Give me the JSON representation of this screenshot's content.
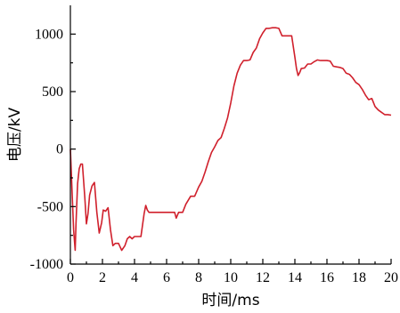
{
  "chart_data": {
    "type": "line",
    "title": "",
    "xlabel": "时间/ms",
    "ylabel": "电压/kV",
    "xlim": [
      0,
      20
    ],
    "ylim": [
      -1000,
      1250
    ],
    "xticks": [
      0,
      2,
      4,
      6,
      8,
      10,
      12,
      14,
      16,
      18,
      20
    ],
    "yticks": [
      -1000,
      -500,
      0,
      500,
      1000
    ],
    "grid": false,
    "legend": "none",
    "series": [
      {
        "color": "#d0202c",
        "x": [
          0,
          0.1,
          0.2,
          0.3,
          0.35,
          0.45,
          0.55,
          0.65,
          0.75,
          0.9,
          1.0,
          1.1,
          1.2,
          1.35,
          1.5,
          1.65,
          1.8,
          1.95,
          2.05,
          2.2,
          2.35,
          2.5,
          2.65,
          2.8,
          3.0,
          3.2,
          3.4,
          3.55,
          3.7,
          3.85,
          4.0,
          4.2,
          4.4,
          4.6,
          4.7,
          4.8,
          4.9,
          5.0,
          5.1,
          5.3,
          5.6,
          6.0,
          6.3,
          6.5,
          6.6,
          6.75,
          7.0,
          7.2,
          7.5,
          7.75,
          8.0,
          8.2,
          8.4,
          8.6,
          8.8,
          9.0,
          9.2,
          9.4,
          9.6,
          9.8,
          10.0,
          10.2,
          10.4,
          10.6,
          10.8,
          11.0,
          11.2,
          11.4,
          11.6,
          11.8,
          12.0,
          12.2,
          12.4,
          12.6,
          12.8,
          13.0,
          13.2,
          13.4,
          13.6,
          13.8,
          14.0,
          14.1,
          14.2,
          14.3,
          14.4,
          14.6,
          14.8,
          15.0,
          15.2,
          15.4,
          15.6,
          15.8,
          16.0,
          16.2,
          16.4,
          16.6,
          16.8,
          17.0,
          17.2,
          17.4,
          17.6,
          17.8,
          18.0,
          18.2,
          18.4,
          18.6,
          18.8,
          19.0,
          19.2,
          19.4,
          19.6,
          19.8,
          20.0
        ],
        "y": [
          0,
          -350,
          -700,
          -880,
          -650,
          -300,
          -170,
          -130,
          -130,
          -420,
          -650,
          -560,
          -400,
          -320,
          -290,
          -550,
          -730,
          -640,
          -530,
          -540,
          -510,
          -700,
          -840,
          -820,
          -820,
          -880,
          -840,
          -780,
          -760,
          -780,
          -760,
          -760,
          -760,
          -560,
          -490,
          -530,
          -550,
          -550,
          -550,
          -550,
          -550,
          -550,
          -550,
          -550,
          -600,
          -550,
          -550,
          -480,
          -410,
          -410,
          -330,
          -280,
          -200,
          -110,
          -30,
          20,
          75,
          100,
          180,
          270,
          400,
          550,
          660,
          730,
          770,
          770,
          775,
          840,
          880,
          960,
          1010,
          1050,
          1050,
          1055,
          1055,
          1050,
          985,
          985,
          985,
          985,
          800,
          700,
          640,
          665,
          700,
          705,
          740,
          740,
          760,
          775,
          770,
          770,
          770,
          765,
          720,
          715,
          710,
          700,
          660,
          650,
          620,
          580,
          560,
          520,
          470,
          430,
          440,
          370,
          340,
          320,
          300,
          300,
          295
        ]
      }
    ]
  }
}
